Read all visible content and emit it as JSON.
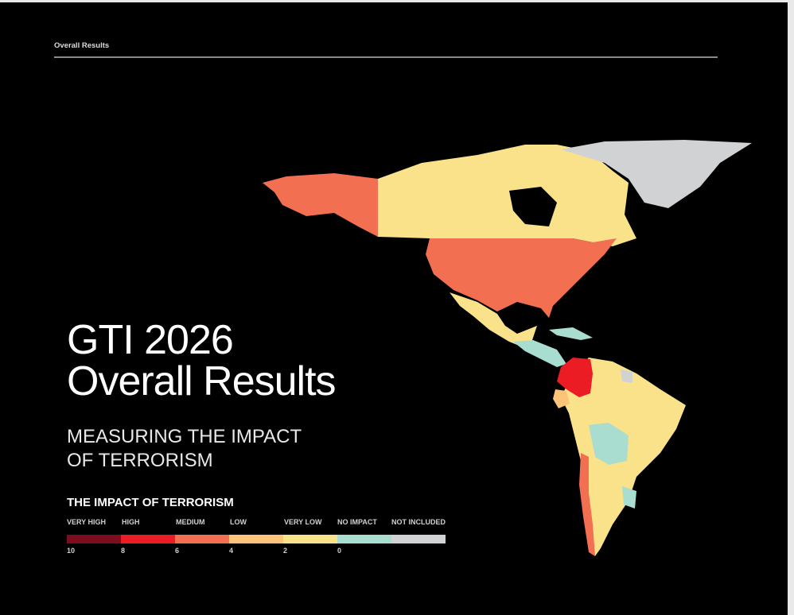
{
  "header": {
    "section": "Overall Results"
  },
  "title": {
    "line1": "GTI 2026",
    "line2": "Overall Results"
  },
  "subtitle": {
    "line1": "MEASURING THE IMPACT",
    "line2": "OF TERRORISM"
  },
  "legend": {
    "title": "THE IMPACT OF TERRORISM",
    "categories": [
      {
        "label": "VERY HIGH",
        "color": "#7d0c1e"
      },
      {
        "label": "HIGH",
        "color": "#ec1c24"
      },
      {
        "label": "MEDIUM",
        "color": "#f26f52"
      },
      {
        "label": "LOW",
        "color": "#fcc379"
      },
      {
        "label": "VERY LOW",
        "color": "#f9e28a"
      },
      {
        "label": "NO IMPACT",
        "color": "#a9ddd0"
      },
      {
        "label": "NOT INCLUDED",
        "color": "#d1d2d4"
      }
    ],
    "ticks": [
      "10",
      "8",
      "6",
      "4",
      "2",
      "0"
    ]
  }
}
